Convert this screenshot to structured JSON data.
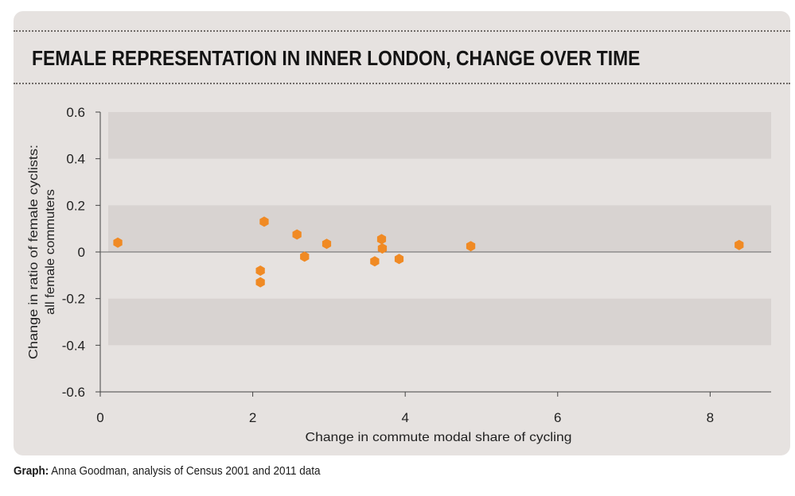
{
  "title": "FEMALE REPRESENTATION IN INNER LONDON, CHANGE OVER TIME",
  "caption": {
    "label": "Graph:",
    "text": "Anna Goodman, analysis of Census 2001 and 2011 data"
  },
  "colors": {
    "panel": "#e6e2e0",
    "band": "#d8d3d1",
    "point": "#f08a24",
    "axis": "#444444"
  },
  "chart_data": {
    "type": "scatter",
    "xlabel": "Change in commute modal share of cycling",
    "ylabel_lines": [
      "Change in ratio of female cyclists:",
      "all female commuters"
    ],
    "xlim": [
      0,
      8.8
    ],
    "ylim": [
      -0.6,
      0.6
    ],
    "xticks": [
      0,
      2,
      4,
      6,
      8
    ],
    "xtick_labels": [
      "0",
      "2",
      "4",
      "6",
      "8"
    ],
    "yticks": [
      0.6,
      0.4,
      0.2,
      0,
      -0.2,
      -0.4,
      -0.6
    ],
    "ytick_labels": [
      "0.6",
      "0.4",
      "0.2",
      "0",
      "-0.2",
      "-0.4",
      "-0.6"
    ],
    "bands": [
      [
        0.4,
        0.6
      ],
      [
        0,
        0.2
      ],
      [
        -0.4,
        -0.2
      ]
    ],
    "marker": "hexagon",
    "points": [
      {
        "x": 0.23,
        "y": 0.04
      },
      {
        "x": 2.1,
        "y": -0.08
      },
      {
        "x": 2.1,
        "y": -0.13
      },
      {
        "x": 2.15,
        "y": 0.13
      },
      {
        "x": 2.58,
        "y": 0.075
      },
      {
        "x": 2.68,
        "y": -0.02
      },
      {
        "x": 2.97,
        "y": 0.035
      },
      {
        "x": 3.6,
        "y": -0.04
      },
      {
        "x": 3.69,
        "y": 0.055
      },
      {
        "x": 3.7,
        "y": 0.015
      },
      {
        "x": 3.92,
        "y": -0.03
      },
      {
        "x": 4.86,
        "y": 0.025
      },
      {
        "x": 8.38,
        "y": 0.03
      }
    ]
  }
}
